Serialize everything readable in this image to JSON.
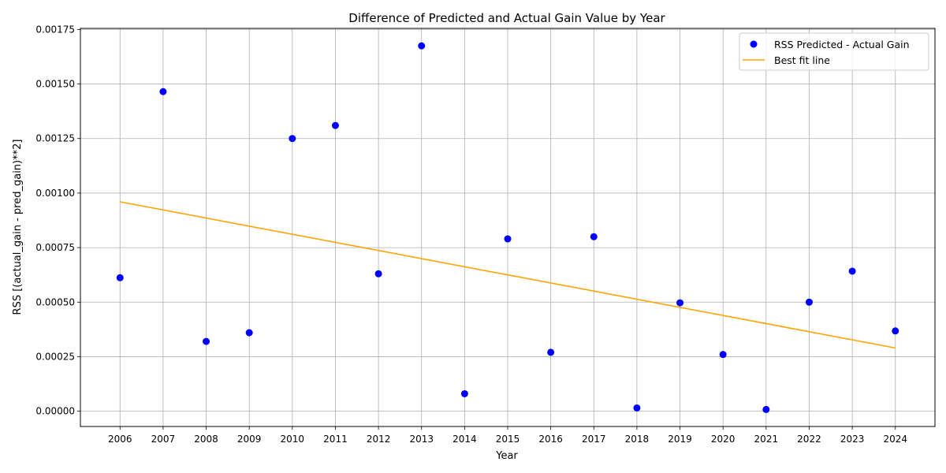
{
  "chart_data": {
    "type": "scatter",
    "title": "Difference of Predicted and Actual Gain Value by Year",
    "xlabel": "Year",
    "ylabel": "RSS [(actual_gain - pred_gain)**2]",
    "x": [
      2006,
      2007,
      2008,
      2009,
      2010,
      2011,
      2012,
      2013,
      2014,
      2015,
      2016,
      2017,
      2018,
      2019,
      2020,
      2021,
      2022,
      2023,
      2024
    ],
    "x_tick_labels": [
      "2006",
      "2007",
      "2008",
      "2009",
      "2010",
      "2011",
      "2012",
      "2013",
      "2014",
      "2015",
      "2016",
      "2017",
      "2018",
      "2019",
      "2020",
      "2021",
      "2022",
      "2023",
      "2024"
    ],
    "xlim": [
      2005.08,
      2024.92
    ],
    "ylim": [
      -7e-05,
      0.001755
    ],
    "y_ticks": [
      0,
      0.00025,
      0.0005,
      0.00075,
      0.001,
      0.00125,
      0.0015,
      0.00175
    ],
    "y_tick_labels": [
      "0.00000",
      "0.00025",
      "0.00050",
      "0.00075",
      "0.00100",
      "0.00125",
      "0.00150",
      "0.00175"
    ],
    "grid": true,
    "legend_position": "top-right",
    "series": [
      {
        "name": "RSS Predicted - Actual Gain",
        "kind": "scatter",
        "color": "#0000ff",
        "values": [
          0.000612,
          0.001465,
          0.00032,
          0.00036,
          0.00125,
          0.00131,
          0.00063,
          0.001675,
          8e-05,
          0.00079,
          0.00027,
          0.0008,
          1.5e-05,
          0.000497,
          0.00026,
          8e-06,
          0.0005,
          0.000642,
          0.000368
        ]
      },
      {
        "name": "Best fit line",
        "kind": "line",
        "color": "#ffa500",
        "x": [
          2006,
          2024
        ],
        "values": [
          0.00096,
          0.00029
        ]
      }
    ]
  }
}
